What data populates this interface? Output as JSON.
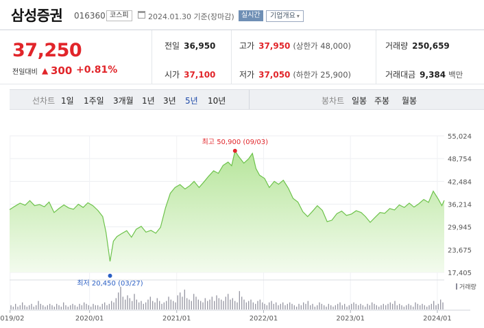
{
  "header": {
    "stock_name": "삼성증권",
    "stock_code": "016360",
    "market_badge": "코스피",
    "date_text": "2024.01.30 기준(장마감)",
    "live_badge": "실시간",
    "overview_button": "기업개요",
    "overview_arrow": "▾"
  },
  "quote": {
    "price": "37,250",
    "change_label": "전일대비",
    "change_arrow": "▲",
    "change": "300",
    "change_pct": "+0.81%",
    "prev_close": {
      "label": "전일",
      "value": "36,950"
    },
    "open": {
      "label": "시가",
      "value": "37,100"
    },
    "high": {
      "label": "고가",
      "value": "37,950",
      "sub": "(상한가 48,000)"
    },
    "low": {
      "label": "저가",
      "value": "37,050",
      "sub": "(하한가 25,900)"
    },
    "volume": {
      "label": "거래량",
      "value": "250,659"
    },
    "amount": {
      "label": "거래대금",
      "value": "9,384",
      "unit": "백만"
    }
  },
  "period_bar": {
    "line_title": "선차트",
    "line_options": [
      "1일",
      "1주일",
      "3개월",
      "1년",
      "3년",
      "5년",
      "10년"
    ],
    "selected": "5년",
    "candle_title": "봉차트",
    "candle_options": [
      "일봉",
      "주봉",
      "월봉"
    ]
  },
  "colors": {
    "up": "#e1252a",
    "line": "#6cc24a",
    "fill_top": "#b6e59a",
    "fill_bottom": "#f3fbee",
    "high_marker": "#e1252a",
    "low_marker": "#2b5fc4",
    "volume_bar": "#8a8a98",
    "selected_period": "#1e4aa8"
  },
  "chart_data": {
    "type": "area",
    "y_ticks": [
      "55,024",
      "48,754",
      "42,484",
      "36,214",
      "29,945",
      "23,675",
      "17,405"
    ],
    "ylim": [
      17405,
      55024
    ],
    "x_ticks": [
      "2019/02",
      "2020/01",
      "2021/01",
      "2022/01",
      "2023/01",
      "2024/01"
    ],
    "x_tick_positions": [
      "2019-02",
      "2020-01",
      "2021-01",
      "2022-01",
      "2023-01",
      "2024-01"
    ],
    "x_range": [
      "2019-01-30",
      "2024-01-30"
    ],
    "high_annotation": "최고 50,900 (09/03)",
    "low_annotation": "최저 20,450 (03/27)",
    "high_point": {
      "date": "2021-09-03",
      "value": 50900
    },
    "low_point": {
      "date": "2020-03-27",
      "value": 20450
    },
    "volume_label": "거래량",
    "grid": true,
    "series": [
      {
        "points": [
          [
            "2019-01-30",
            34700
          ],
          [
            "2019-02-20",
            35600
          ],
          [
            "2019-03-15",
            36500
          ],
          [
            "2019-04-05",
            35900
          ],
          [
            "2019-04-25",
            37200
          ],
          [
            "2019-05-15",
            35800
          ],
          [
            "2019-06-05",
            36100
          ],
          [
            "2019-06-25",
            35500
          ],
          [
            "2019-07-15",
            36800
          ],
          [
            "2019-08-05",
            33900
          ],
          [
            "2019-08-25",
            35000
          ],
          [
            "2019-09-15",
            36000
          ],
          [
            "2019-10-05",
            35200
          ],
          [
            "2019-10-25",
            34800
          ],
          [
            "2019-11-15",
            36200
          ],
          [
            "2019-12-05",
            35300
          ],
          [
            "2019-12-25",
            36600
          ],
          [
            "2020-01-15",
            35800
          ],
          [
            "2020-02-05",
            34500
          ],
          [
            "2020-02-25",
            32800
          ],
          [
            "2020-03-10",
            28500
          ],
          [
            "2020-03-27",
            20450
          ],
          [
            "2020-04-10",
            26000
          ],
          [
            "2020-04-25",
            27300
          ],
          [
            "2020-05-15",
            28100
          ],
          [
            "2020-06-05",
            28900
          ],
          [
            "2020-06-25",
            27100
          ],
          [
            "2020-07-15",
            29300
          ],
          [
            "2020-08-05",
            30100
          ],
          [
            "2020-08-25",
            28500
          ],
          [
            "2020-09-15",
            29000
          ],
          [
            "2020-10-05",
            28200
          ],
          [
            "2020-10-25",
            29800
          ],
          [
            "2020-11-15",
            35200
          ],
          [
            "2020-12-05",
            39200
          ],
          [
            "2020-12-25",
            40800
          ],
          [
            "2021-01-15",
            41600
          ],
          [
            "2021-02-05",
            40400
          ],
          [
            "2021-02-25",
            41300
          ],
          [
            "2021-03-15",
            42500
          ],
          [
            "2021-04-05",
            40800
          ],
          [
            "2021-04-25",
            42300
          ],
          [
            "2021-05-15",
            43900
          ],
          [
            "2021-06-05",
            45400
          ],
          [
            "2021-06-25",
            44700
          ],
          [
            "2021-07-15",
            46900
          ],
          [
            "2021-08-05",
            47800
          ],
          [
            "2021-08-20",
            46800
          ],
          [
            "2021-09-03",
            50900
          ],
          [
            "2021-09-20",
            49200
          ],
          [
            "2021-10-10",
            47500
          ],
          [
            "2021-10-30",
            48700
          ],
          [
            "2021-11-15",
            50200
          ],
          [
            "2021-11-30",
            46000
          ],
          [
            "2021-12-15",
            44200
          ],
          [
            "2022-01-05",
            43300
          ],
          [
            "2022-01-25",
            40800
          ],
          [
            "2022-02-15",
            42500
          ],
          [
            "2022-03-05",
            41700
          ],
          [
            "2022-03-25",
            42800
          ],
          [
            "2022-04-15",
            40600
          ],
          [
            "2022-05-05",
            37800
          ],
          [
            "2022-05-25",
            36800
          ],
          [
            "2022-06-15",
            34100
          ],
          [
            "2022-07-05",
            32800
          ],
          [
            "2022-07-25",
            34200
          ],
          [
            "2022-08-15",
            35800
          ],
          [
            "2022-09-05",
            34500
          ],
          [
            "2022-09-25",
            31400
          ],
          [
            "2022-10-15",
            31800
          ],
          [
            "2022-11-05",
            33600
          ],
          [
            "2022-11-25",
            34300
          ],
          [
            "2022-12-15",
            33100
          ],
          [
            "2023-01-05",
            33500
          ],
          [
            "2023-01-25",
            34400
          ],
          [
            "2023-02-15",
            33900
          ],
          [
            "2023-03-05",
            32800
          ],
          [
            "2023-03-25",
            31200
          ],
          [
            "2023-04-15",
            32600
          ],
          [
            "2023-05-05",
            33900
          ],
          [
            "2023-05-25",
            33700
          ],
          [
            "2023-06-15",
            35000
          ],
          [
            "2023-07-05",
            34600
          ],
          [
            "2023-07-25",
            36000
          ],
          [
            "2023-08-15",
            35300
          ],
          [
            "2023-09-05",
            36500
          ],
          [
            "2023-09-25",
            35400
          ],
          [
            "2023-10-15",
            36300
          ],
          [
            "2023-11-05",
            37500
          ],
          [
            "2023-11-25",
            36700
          ],
          [
            "2023-12-15",
            39800
          ],
          [
            "2024-01-05",
            37600
          ],
          [
            "2024-01-20",
            35800
          ],
          [
            "2024-01-30",
            37250
          ]
        ]
      }
    ],
    "volume": [
      3,
      2,
      4,
      2,
      3,
      5,
      3,
      2,
      3,
      4,
      2,
      3,
      6,
      4,
      3,
      2,
      3,
      4,
      3,
      2,
      4,
      3,
      2,
      5,
      3,
      2,
      3,
      4,
      3,
      2,
      4,
      3,
      5,
      4,
      3,
      2,
      4,
      3,
      3,
      2,
      4,
      5,
      3,
      4,
      6,
      5,
      8,
      12,
      16,
      9,
      7,
      10,
      8,
      6,
      11,
      7,
      5,
      6,
      4,
      5,
      7,
      9,
      6,
      5,
      8,
      6,
      4,
      5,
      6,
      9,
      7,
      6,
      5,
      10,
      12,
      9,
      14,
      8,
      7,
      6,
      11,
      9,
      7,
      6,
      5,
      8,
      6,
      7,
      9,
      6,
      10,
      8,
      7,
      6,
      9,
      11,
      7,
      8,
      6,
      5,
      13,
      9,
      7,
      5,
      6,
      7,
      5,
      4,
      6,
      7,
      5,
      4,
      3,
      5,
      6,
      4,
      5,
      3,
      4,
      5,
      3,
      4,
      5,
      4,
      3,
      2,
      4,
      3,
      5,
      4,
      6,
      3,
      4,
      2,
      3,
      5,
      4,
      3,
      2,
      4,
      3,
      2,
      3,
      4,
      5,
      3,
      4,
      2,
      3,
      4,
      5,
      4,
      3,
      4,
      3,
      2,
      4,
      3,
      5,
      4,
      3,
      2,
      3,
      4,
      3,
      4,
      5,
      4,
      6,
      3,
      4,
      3,
      2,
      3,
      4,
      3,
      2,
      5,
      4,
      3,
      4,
      3,
      2,
      3,
      4,
      6,
      3,
      4,
      7,
      5
    ]
  }
}
